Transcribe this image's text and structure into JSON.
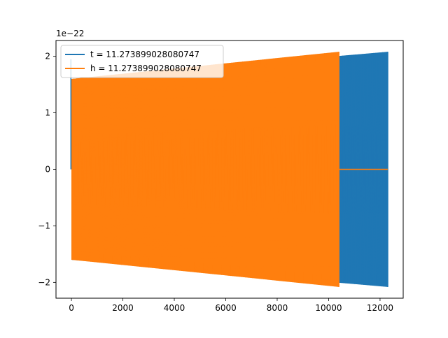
{
  "chart_data": {
    "type": "line",
    "title": "",
    "xlabel": "",
    "ylabel": "",
    "offset_text": "1e−22",
    "xlim": [
      -600,
      12900
    ],
    "ylim": [
      -2.28,
      2.28
    ],
    "x_ticks": [
      0,
      2000,
      4000,
      6000,
      8000,
      10000,
      12000
    ],
    "x_tick_labels": [
      "0",
      "2000",
      "4000",
      "6000",
      "8000",
      "10000",
      "12000"
    ],
    "y_ticks": [
      -2,
      -1,
      0,
      1,
      2
    ],
    "y_tick_labels": [
      "−2",
      "−1",
      "0",
      "1",
      "2"
    ],
    "grid": false,
    "legend_position": "upper-left",
    "series": [
      {
        "name": "t = 11.273899028080747",
        "color": "#1f77b4",
        "x_start": 0,
        "x_end": 12300,
        "envelope_upper": [
          1.6,
          2.08
        ],
        "envelope_lower": [
          -1.6,
          -2.08
        ],
        "end_value": 0
      },
      {
        "name": "h = 11.273899028080747",
        "color": "#ff7f0e",
        "x_start": 0,
        "x_end": 10400,
        "envelope_upper": [
          1.6,
          2.08
        ],
        "envelope_lower": [
          -1.6,
          -2.08
        ],
        "tail_x_end": 12300,
        "tail_value": 0
      }
    ]
  }
}
